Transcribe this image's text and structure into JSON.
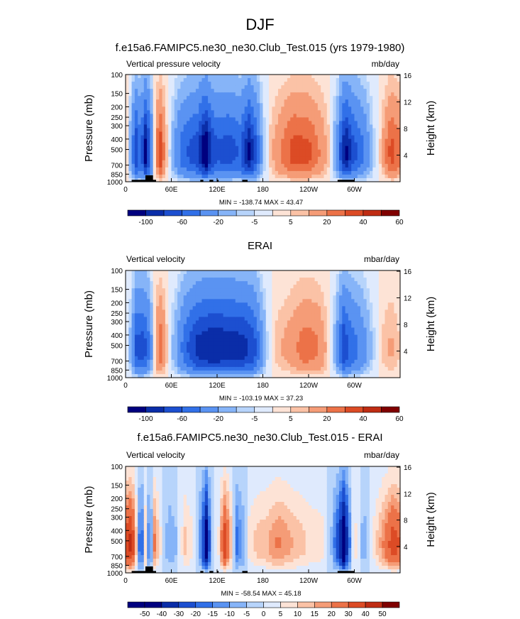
{
  "figure": {
    "title": "DJF"
  },
  "colors": {
    "wet": [
      "#00007f",
      "#0a2da8",
      "#1c4fd0",
      "#3170e8",
      "#5a93f2",
      "#86b4f8",
      "#b7d4fb",
      "#dfeafd"
    ],
    "dry": [
      "#fde3d6",
      "#fbc2a6",
      "#f59c77",
      "#ec7248",
      "#dc4b25",
      "#bf2c13",
      "#800000"
    ],
    "neutral": "#f4f4f4",
    "topography": "#000000"
  },
  "chart_data": [
    {
      "type": "heatmap",
      "subtitle": "f.e15a6.FAMIPC5.ne30_ne30.Club_Test.015 (yrs 1979-1980)",
      "left_label": "Vertical pressure velocity",
      "right_label": "mb/day",
      "xlabel": "",
      "ylabel": "Pressure (mb)",
      "ylabel_right": "Height (km)",
      "x_ticks": [
        "0",
        "60E",
        "120E",
        "180",
        "120W",
        "60W"
      ],
      "x_tick_values": [
        0,
        60,
        120,
        180,
        240,
        300
      ],
      "xlim": [
        0,
        360
      ],
      "y_ticks": [
        "100",
        "150",
        "200",
        "250",
        "300",
        "400",
        "500",
        "700",
        "850",
        "1000"
      ],
      "y_tick_values": [
        100,
        150,
        200,
        250,
        300,
        400,
        500,
        700,
        850,
        1000
      ],
      "ylim": [
        100,
        1000
      ],
      "right_ticks": [
        "4",
        "8",
        "12",
        "16"
      ],
      "right_tick_values": [
        4,
        8,
        12,
        16
      ],
      "stats": "MIN = -138.74  MAX =  43.47",
      "colorbar_labels": [
        "-100",
        "-60",
        "-20",
        "-5",
        "5",
        "20",
        "40",
        "60"
      ],
      "scale": 1.0,
      "topography": true,
      "lon_bands": [
        {
          "lon": 0,
          "value": 8
        },
        {
          "lon": 8,
          "value": -20
        },
        {
          "lon": 13,
          "value": -70
        },
        {
          "lon": 20,
          "value": -40
        },
        {
          "lon": 26,
          "value": -95
        },
        {
          "lon": 32,
          "value": -50
        },
        {
          "lon": 38,
          "value": 4
        },
        {
          "lon": 45,
          "value": 35
        },
        {
          "lon": 50,
          "value": 18
        },
        {
          "lon": 56,
          "value": 0
        },
        {
          "lon": 63,
          "value": -15
        },
        {
          "lon": 75,
          "value": -45
        },
        {
          "lon": 95,
          "value": -65
        },
        {
          "lon": 105,
          "value": -110
        },
        {
          "lon": 112,
          "value": -70
        },
        {
          "lon": 120,
          "value": -55
        },
        {
          "lon": 135,
          "value": -60
        },
        {
          "lon": 150,
          "value": -50
        },
        {
          "lon": 162,
          "value": -90
        },
        {
          "lon": 172,
          "value": -50
        },
        {
          "lon": 180,
          "value": -10
        },
        {
          "lon": 190,
          "value": 6
        },
        {
          "lon": 200,
          "value": 14
        },
        {
          "lon": 220,
          "value": 30
        },
        {
          "lon": 240,
          "value": 28
        },
        {
          "lon": 258,
          "value": 14
        },
        {
          "lon": 268,
          "value": 4
        },
        {
          "lon": 278,
          "value": -25
        },
        {
          "lon": 288,
          "value": -95
        },
        {
          "lon": 298,
          "value": -60
        },
        {
          "lon": 312,
          "value": -35
        },
        {
          "lon": 324,
          "value": -8
        },
        {
          "lon": 335,
          "value": 6
        },
        {
          "lon": 348,
          "value": 30
        },
        {
          "lon": 360,
          "value": 20
        }
      ]
    },
    {
      "type": "heatmap",
      "subtitle": "ERAI",
      "left_label": "Vertical velocity",
      "right_label": "mbar/day",
      "xlabel": "",
      "ylabel": "Pressure (mb)",
      "ylabel_right": "Height (km)",
      "x_ticks": [
        "0",
        "60E",
        "120E",
        "180",
        "120W",
        "60W"
      ],
      "x_tick_values": [
        0,
        60,
        120,
        180,
        240,
        300
      ],
      "xlim": [
        0,
        360
      ],
      "y_ticks": [
        "100",
        "150",
        "200",
        "250",
        "300",
        "400",
        "500",
        "700",
        "850",
        "1000"
      ],
      "y_tick_values": [
        100,
        150,
        200,
        250,
        300,
        400,
        500,
        700,
        850,
        1000
      ],
      "ylim": [
        100,
        1000
      ],
      "right_ticks": [
        "4",
        "8",
        "12",
        "16"
      ],
      "right_tick_values": [
        4,
        8,
        12,
        16
      ],
      "stats": "MIN = -103.19  MAX =  37.23",
      "colorbar_labels": [
        "-100",
        "-60",
        "-20",
        "-5",
        "5",
        "20",
        "40",
        "60"
      ],
      "scale": 1.0,
      "topography": false,
      "lon_bands": [
        {
          "lon": 0,
          "value": 2
        },
        {
          "lon": 8,
          "value": -15
        },
        {
          "lon": 14,
          "value": -55
        },
        {
          "lon": 24,
          "value": -60
        },
        {
          "lon": 30,
          "value": -40
        },
        {
          "lon": 36,
          "value": -8
        },
        {
          "lon": 44,
          "value": 25
        },
        {
          "lon": 50,
          "value": 15
        },
        {
          "lon": 58,
          "value": -4
        },
        {
          "lon": 66,
          "value": -15
        },
        {
          "lon": 78,
          "value": -45
        },
        {
          "lon": 95,
          "value": -75
        },
        {
          "lon": 115,
          "value": -85
        },
        {
          "lon": 135,
          "value": -80
        },
        {
          "lon": 155,
          "value": -75
        },
        {
          "lon": 168,
          "value": -60
        },
        {
          "lon": 178,
          "value": -25
        },
        {
          "lon": 186,
          "value": -5
        },
        {
          "lon": 198,
          "value": 6
        },
        {
          "lon": 215,
          "value": 12
        },
        {
          "lon": 235,
          "value": 22
        },
        {
          "lon": 252,
          "value": 18
        },
        {
          "lon": 265,
          "value": 6
        },
        {
          "lon": 276,
          "value": -15
        },
        {
          "lon": 286,
          "value": -65
        },
        {
          "lon": 296,
          "value": -45
        },
        {
          "lon": 308,
          "value": -30
        },
        {
          "lon": 320,
          "value": -12
        },
        {
          "lon": 334,
          "value": 4
        },
        {
          "lon": 348,
          "value": 10
        },
        {
          "lon": 360,
          "value": 4
        }
      ]
    },
    {
      "type": "heatmap",
      "subtitle": "f.e15a6.FAMIPC5.ne30_ne30.Club_Test.015 - ERAI",
      "left_label": "Vertical velocity",
      "right_label": "mbar/day",
      "xlabel": "",
      "ylabel": "Pressure (mb)",
      "ylabel_right": "Height (km)",
      "x_ticks": [
        "0",
        "60E",
        "120E",
        "180",
        "120W",
        "60W"
      ],
      "x_tick_values": [
        0,
        60,
        120,
        180,
        240,
        300
      ],
      "xlim": [
        0,
        360
      ],
      "y_ticks": [
        "100",
        "150",
        "200",
        "250",
        "300",
        "400",
        "500",
        "700",
        "850",
        "1000"
      ],
      "y_tick_values": [
        100,
        150,
        200,
        250,
        300,
        400,
        500,
        700,
        850,
        1000
      ],
      "ylim": [
        100,
        1000
      ],
      "right_ticks": [
        "4",
        "8",
        "12",
        "16"
      ],
      "right_tick_values": [
        4,
        8,
        12,
        16
      ],
      "stats": "MIN = -58.54  MAX =  45.18",
      "colorbar_labels": [
        "-50",
        "-40",
        "-30",
        "-20",
        "-15",
        "-10",
        "-5",
        "0",
        "5",
        "10",
        "15",
        "20",
        "30",
        "40",
        "50"
      ],
      "scale": 1.0,
      "topography": true,
      "lon_bands": [
        {
          "lon": 0,
          "value": 30
        },
        {
          "lon": 8,
          "value": 38
        },
        {
          "lon": 14,
          "value": 10
        },
        {
          "lon": 20,
          "value": -25
        },
        {
          "lon": 26,
          "value": 8
        },
        {
          "lon": 32,
          "value": -20
        },
        {
          "lon": 38,
          "value": 18
        },
        {
          "lon": 46,
          "value": 5
        },
        {
          "lon": 56,
          "value": -8
        },
        {
          "lon": 66,
          "value": -5
        },
        {
          "lon": 78,
          "value": 10
        },
        {
          "lon": 90,
          "value": 4
        },
        {
          "lon": 100,
          "value": -15
        },
        {
          "lon": 106,
          "value": -45
        },
        {
          "lon": 112,
          "value": -5
        },
        {
          "lon": 122,
          "value": 5
        },
        {
          "lon": 130,
          "value": 32
        },
        {
          "lon": 138,
          "value": 12
        },
        {
          "lon": 146,
          "value": -15
        },
        {
          "lon": 154,
          "value": -8
        },
        {
          "lon": 162,
          "value": 6
        },
        {
          "lon": 172,
          "value": 10
        },
        {
          "lon": 185,
          "value": 12
        },
        {
          "lon": 200,
          "value": 18
        },
        {
          "lon": 222,
          "value": 12
        },
        {
          "lon": 240,
          "value": 8
        },
        {
          "lon": 258,
          "value": 6
        },
        {
          "lon": 270,
          "value": -5
        },
        {
          "lon": 280,
          "value": -25
        },
        {
          "lon": 286,
          "value": -50
        },
        {
          "lon": 292,
          "value": -20
        },
        {
          "lon": 300,
          "value": 8
        },
        {
          "lon": 312,
          "value": -8
        },
        {
          "lon": 324,
          "value": 4
        },
        {
          "lon": 336,
          "value": 15
        },
        {
          "lon": 350,
          "value": 30
        },
        {
          "lon": 360,
          "value": 25
        }
      ]
    }
  ]
}
